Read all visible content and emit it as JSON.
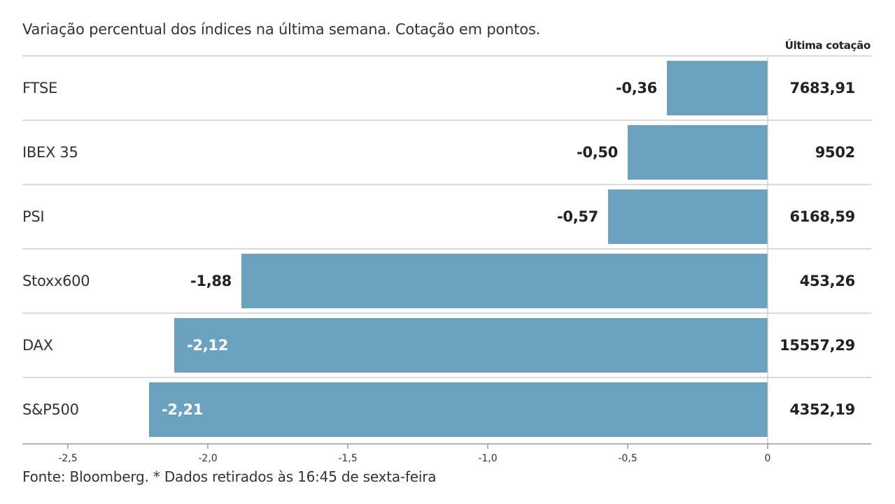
{
  "subtitle": "Variação percentual dos índices na última semana. Cotação em pontos.",
  "last_quote_header": "Última cotação",
  "source": "Fonte: Bloomberg.  * Dados retirados às 16:45 de sexta-feira",
  "colors": {
    "bar": "#6aa2bf",
    "gridline": "#cfcfcf",
    "axis": "#999999"
  },
  "chart_data": {
    "type": "bar",
    "orientation": "horizontal",
    "categories": [
      "FTSE",
      "IBEX 35",
      "PSI",
      "Stoxx600",
      "DAX",
      "S&P500"
    ],
    "values": [
      -0.36,
      -0.5,
      -0.57,
      -1.88,
      -2.12,
      -2.21
    ],
    "value_labels": [
      "-0,36",
      "-0,50",
      "-0,57",
      "-1,88",
      "-2,12",
      "-2,21"
    ],
    "last_quote": [
      "7683,91",
      "9502",
      "6168,59",
      "453,26",
      "15557,29",
      "4352,19"
    ],
    "xlim": [
      -2.5,
      0
    ],
    "xticks": [
      -2.5,
      -2.0,
      -1.5,
      -1.0,
      -0.5,
      0
    ],
    "xtick_labels": [
      "-2,5",
      "-2,0",
      "-1,5",
      "-1,0",
      "-0,5",
      "0"
    ],
    "grid": false
  }
}
